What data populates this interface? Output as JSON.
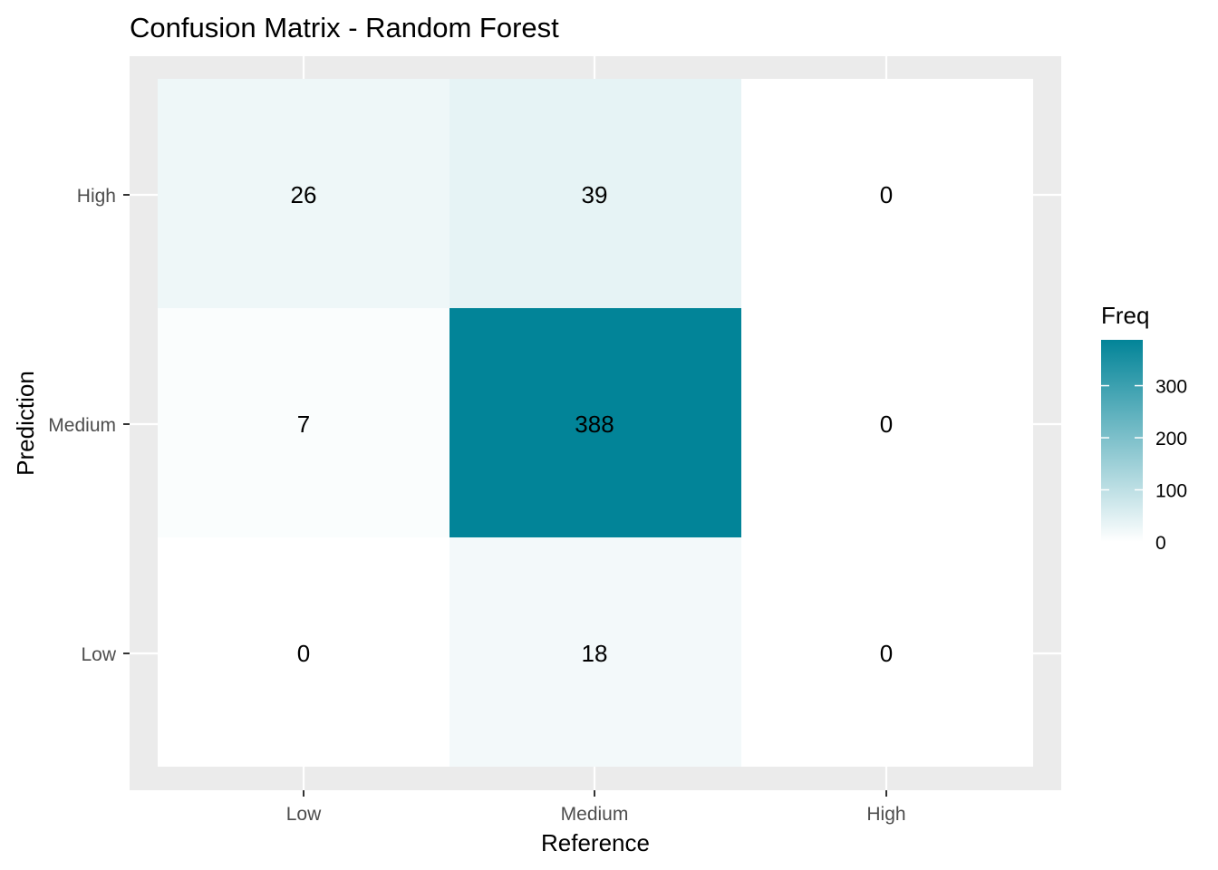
{
  "chart_data": {
    "type": "heatmap",
    "title": "Confusion Matrix - Random Forest",
    "xlabel": "Reference",
    "ylabel": "Prediction",
    "x_categories": [
      "Low",
      "Medium",
      "High"
    ],
    "y_categories": [
      "Low",
      "Medium",
      "High"
    ],
    "cells": [
      {
        "x": "Low",
        "y": "High",
        "value": 26
      },
      {
        "x": "Medium",
        "y": "High",
        "value": 39
      },
      {
        "x": "High",
        "y": "High",
        "value": 0
      },
      {
        "x": "Low",
        "y": "Medium",
        "value": 7
      },
      {
        "x": "Medium",
        "y": "Medium",
        "value": 388
      },
      {
        "x": "High",
        "y": "Medium",
        "value": 0
      },
      {
        "x": "Low",
        "y": "Low",
        "value": 0
      },
      {
        "x": "Medium",
        "y": "Low",
        "value": 18
      },
      {
        "x": "High",
        "y": "Low",
        "value": 0
      }
    ],
    "legend": {
      "title": "Freq",
      "ticks": [
        0,
        100,
        200,
        300
      ],
      "range": [
        0,
        388
      ],
      "position": "right"
    },
    "colors": {
      "low": "#ffffff",
      "high": "#028498",
      "panel_background": "#ebebeb",
      "grid": "#ffffff"
    },
    "grid": true
  }
}
